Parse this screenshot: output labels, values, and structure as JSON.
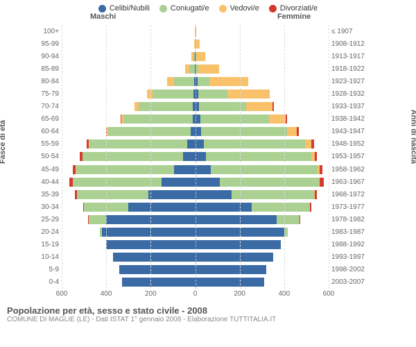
{
  "chart": {
    "type": "population-pyramid",
    "legend": [
      {
        "label": "Celibi/Nubili",
        "color": "#3b6ba5"
      },
      {
        "label": "Coniugati/e",
        "color": "#aad092"
      },
      {
        "label": "Vedovi/e",
        "color": "#f9c16a"
      },
      {
        "label": "Divorziati/e",
        "color": "#d43a2f"
      }
    ],
    "column_headers": {
      "male": "Maschi",
      "female": "Femmine"
    },
    "y_left_title": "Fasce di età",
    "y_right_title": "Anni di nascita",
    "x_axis": {
      "min": -600,
      "max": 600,
      "ticks": [
        -600,
        -400,
        -200,
        0,
        200,
        400,
        600
      ],
      "tick_labels": [
        "600",
        "400",
        "200",
        "0",
        "200",
        "400",
        "600"
      ]
    },
    "background_color": "#ffffff",
    "grid_color": "#dddddd",
    "center_line_color": "#bbbbbb",
    "bar_gap": 2,
    "font_family": "Arial",
    "label_fontsize": 10,
    "title_fontsize": 13,
    "rows": [
      {
        "age": "100+",
        "birth": "≤ 1907",
        "m": [
          0,
          0,
          2,
          0
        ],
        "f": [
          0,
          0,
          5,
          0
        ]
      },
      {
        "age": "95-99",
        "birth": "1908-1912",
        "m": [
          0,
          0,
          5,
          0
        ],
        "f": [
          1,
          0,
          20,
          0
        ]
      },
      {
        "age": "90-94",
        "birth": "1913-1917",
        "m": [
          2,
          5,
          10,
          0
        ],
        "f": [
          2,
          3,
          40,
          0
        ]
      },
      {
        "age": "85-89",
        "birth": "1918-1922",
        "m": [
          3,
          25,
          18,
          0
        ],
        "f": [
          3,
          10,
          95,
          0
        ]
      },
      {
        "age": "80-84",
        "birth": "1923-1927",
        "m": [
          5,
          90,
          30,
          0
        ],
        "f": [
          10,
          55,
          175,
          0
        ]
      },
      {
        "age": "75-79",
        "birth": "1928-1932",
        "m": [
          8,
          185,
          25,
          0
        ],
        "f": [
          15,
          130,
          190,
          0
        ]
      },
      {
        "age": "70-74",
        "birth": "1933-1937",
        "m": [
          10,
          245,
          18,
          0
        ],
        "f": [
          18,
          210,
          120,
          5
        ]
      },
      {
        "age": "65-69",
        "birth": "1938-1942",
        "m": [
          12,
          310,
          10,
          3
        ],
        "f": [
          22,
          310,
          75,
          5
        ]
      },
      {
        "age": "60-64",
        "birth": "1943-1947",
        "m": [
          20,
          370,
          7,
          5
        ],
        "f": [
          28,
          385,
          45,
          8
        ]
      },
      {
        "age": "55-59",
        "birth": "1948-1952",
        "m": [
          35,
          440,
          5,
          8
        ],
        "f": [
          38,
          455,
          30,
          12
        ]
      },
      {
        "age": "50-54",
        "birth": "1953-1957",
        "m": [
          55,
          450,
          3,
          10
        ],
        "f": [
          48,
          475,
          15,
          10
        ]
      },
      {
        "age": "45-49",
        "birth": "1958-1962",
        "m": [
          95,
          440,
          2,
          12
        ],
        "f": [
          70,
          480,
          8,
          15
        ]
      },
      {
        "age": "40-44",
        "birth": "1963-1967",
        "m": [
          150,
          400,
          1,
          14
        ],
        "f": [
          110,
          445,
          4,
          18
        ]
      },
      {
        "age": "35-39",
        "birth": "1968-1972",
        "m": [
          210,
          320,
          0,
          10
        ],
        "f": [
          165,
          370,
          2,
          10
        ]
      },
      {
        "age": "30-34",
        "birth": "1973-1977",
        "m": [
          300,
          200,
          0,
          5
        ],
        "f": [
          255,
          260,
          0,
          8
        ]
      },
      {
        "age": "25-29",
        "birth": "1978-1982",
        "m": [
          400,
          80,
          0,
          2
        ],
        "f": [
          365,
          105,
          0,
          3
        ]
      },
      {
        "age": "20-24",
        "birth": "1983-1987",
        "m": [
          420,
          10,
          0,
          0
        ],
        "f": [
          400,
          15,
          0,
          0
        ]
      },
      {
        "age": "15-19",
        "birth": "1988-1992",
        "m": [
          400,
          0,
          0,
          0
        ],
        "f": [
          385,
          0,
          0,
          0
        ]
      },
      {
        "age": "10-14",
        "birth": "1993-1997",
        "m": [
          370,
          0,
          0,
          0
        ],
        "f": [
          350,
          0,
          0,
          0
        ]
      },
      {
        "age": "5-9",
        "birth": "1998-2002",
        "m": [
          340,
          0,
          0,
          0
        ],
        "f": [
          320,
          0,
          0,
          0
        ]
      },
      {
        "age": "0-4",
        "birth": "2003-2007",
        "m": [
          330,
          0,
          0,
          0
        ],
        "f": [
          310,
          0,
          0,
          0
        ]
      }
    ]
  },
  "footer": {
    "title": "Popolazione per età, sesso e stato civile - 2008",
    "subtitle": "COMUNE DI MAGLIE (LE) - Dati ISTAT 1° gennaio 2008 - Elaborazione TUTTITALIA.IT"
  }
}
